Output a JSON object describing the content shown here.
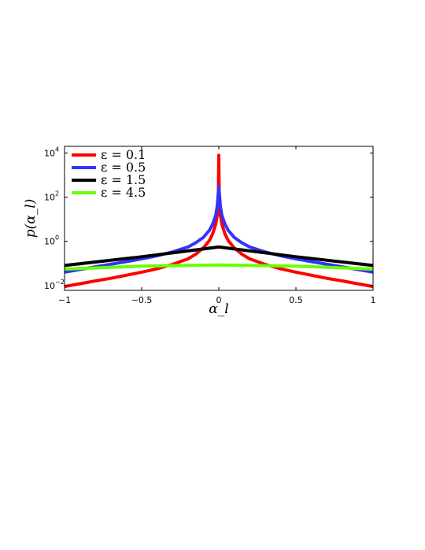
{
  "chart_data": {
    "type": "line",
    "title": "",
    "xlabel": "α_l",
    "ylabel": "p(α_l)",
    "xlim": [
      -1,
      1
    ],
    "ylim": [
      0.006,
      20000
    ],
    "yscale": "log",
    "grid": false,
    "legend_position": "top-left",
    "x_ticks": [
      {
        "value": -1,
        "label": "−1"
      },
      {
        "value": -0.5,
        "label": "−0.5"
      },
      {
        "value": 0,
        "label": "0"
      },
      {
        "value": 0.5,
        "label": "0.5"
      },
      {
        "value": 1,
        "label": "1"
      }
    ],
    "y_ticks": [
      {
        "value": 0.01,
        "base": "10",
        "exp": "−2"
      },
      {
        "value": 1,
        "base": "10",
        "exp": "0"
      },
      {
        "value": 100,
        "base": "10",
        "exp": "2"
      },
      {
        "value": 10000,
        "base": "10",
        "exp": "4"
      }
    ],
    "series": [
      {
        "name": "ε = 0.1",
        "color": "#ff0000",
        "x": [
          -1,
          -0.9,
          -0.8,
          -0.7,
          -0.6,
          -0.5,
          -0.4,
          -0.3,
          -0.2,
          -0.15,
          -0.1,
          -0.06,
          -0.04,
          -0.02,
          -0.01,
          -0.003,
          0,
          0.003,
          0.01,
          0.02,
          0.04,
          0.06,
          0.1,
          0.15,
          0.2,
          0.3,
          0.4,
          0.5,
          0.6,
          0.7,
          0.8,
          0.9,
          1
        ],
        "y": [
          0.009,
          0.012,
          0.016,
          0.021,
          0.029,
          0.04,
          0.057,
          0.09,
          0.16,
          0.26,
          0.5,
          1.1,
          2.2,
          6,
          15,
          80,
          8000,
          80,
          15,
          6,
          2.2,
          1.1,
          0.5,
          0.26,
          0.16,
          0.09,
          0.057,
          0.04,
          0.029,
          0.021,
          0.016,
          0.012,
          0.009
        ]
      },
      {
        "name": "ε = 0.5",
        "color": "#3333ff",
        "x": [
          -1,
          -0.8,
          -0.6,
          -0.5,
          -0.4,
          -0.3,
          -0.2,
          -0.15,
          -0.1,
          -0.06,
          -0.04,
          -0.02,
          -0.01,
          0,
          0.01,
          0.02,
          0.04,
          0.06,
          0.1,
          0.15,
          0.2,
          0.3,
          0.4,
          0.5,
          0.6,
          0.8,
          1
        ],
        "y": [
          0.04,
          0.07,
          0.12,
          0.16,
          0.22,
          0.33,
          0.55,
          0.85,
          1.5,
          3.2,
          6,
          15,
          40,
          300,
          40,
          15,
          6,
          3.2,
          1.5,
          0.85,
          0.55,
          0.33,
          0.22,
          0.16,
          0.12,
          0.07,
          0.04
        ]
      },
      {
        "name": "ε = 1.5",
        "color": "#000000",
        "x": [
          -1,
          -0.5,
          0,
          0.5,
          1
        ],
        "y": [
          0.08,
          0.2,
          0.55,
          0.2,
          0.08
        ]
      },
      {
        "name": "ε = 4.5",
        "color": "#66ff00",
        "x": [
          -1,
          -0.5,
          0,
          0.5,
          1
        ],
        "y": [
          0.055,
          0.075,
          0.085,
          0.075,
          0.055
        ]
      }
    ]
  }
}
